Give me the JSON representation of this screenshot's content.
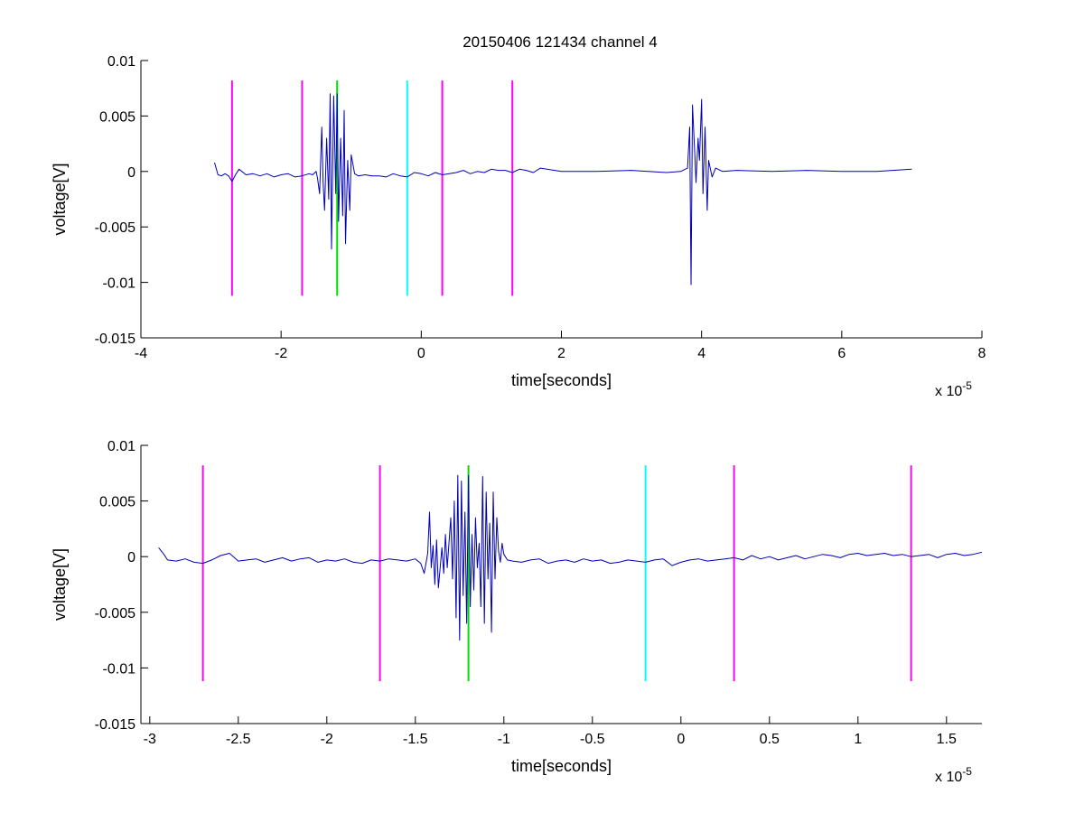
{
  "title": "20150406 121434 channel 4",
  "colors": {
    "signal": "#0000b4",
    "magenta_marker": "#ff00ff",
    "green_marker": "#00e000",
    "cyan_marker": "#00ffff",
    "axes": "#000000"
  },
  "chart_data": [
    {
      "type": "line",
      "title": "20150406 121434 channel 4",
      "xlabel": "time[seconds]",
      "ylabel": "voltage[V]",
      "x_multiplier_label": "x 10",
      "x_multiplier_exponent": "-5",
      "x_unit_scale": 1e-05,
      "xlim": [
        -4,
        8
      ],
      "ylim": [
        -0.015,
        0.01
      ],
      "xticks": [
        -4,
        -2,
        0,
        2,
        4,
        6,
        8
      ],
      "xtick_labels": [
        "-4",
        "-2",
        "0",
        "2",
        "4",
        "6",
        "8"
      ],
      "yticks": [
        -0.015,
        -0.01,
        -0.005,
        0,
        0.005,
        0.01
      ],
      "ytick_labels": [
        "-0.015",
        "-0.01",
        "-0.005",
        "0",
        "0.005",
        "0.01"
      ],
      "grid": false,
      "markers": [
        {
          "x": -2.7,
          "color": "magenta",
          "y_range": [
            -0.0112,
            0.0082
          ]
        },
        {
          "x": -1.7,
          "color": "magenta",
          "y_range": [
            -0.0112,
            0.0082
          ]
        },
        {
          "x": -1.2,
          "color": "green",
          "y_range": [
            -0.0112,
            0.0082
          ]
        },
        {
          "x": -0.2,
          "color": "cyan",
          "y_range": [
            -0.0112,
            0.0082
          ]
        },
        {
          "x": 0.3,
          "color": "magenta",
          "y_range": [
            -0.0112,
            0.0082
          ]
        },
        {
          "x": 1.3,
          "color": "magenta",
          "y_range": [
            -0.0112,
            0.0082
          ]
        }
      ],
      "series": [
        {
          "x": [
            -2.95,
            -2.9,
            -2.85,
            -2.8,
            -2.75,
            -2.7,
            -2.65,
            -2.6,
            -2.5,
            -2.4,
            -2.3,
            -2.2,
            -2.1,
            -2.0,
            -1.9,
            -1.8,
            -1.7,
            -1.6,
            -1.55,
            -1.5,
            -1.48,
            -1.45,
            -1.42,
            -1.4,
            -1.38,
            -1.35,
            -1.32,
            -1.3,
            -1.28,
            -1.25,
            -1.22,
            -1.2,
            -1.18,
            -1.15,
            -1.12,
            -1.1,
            -1.08,
            -1.05,
            -1.02,
            -1.0,
            -0.95,
            -0.9,
            -0.8,
            -0.7,
            -0.6,
            -0.5,
            -0.4,
            -0.3,
            -0.2,
            -0.1,
            0.0,
            0.1,
            0.2,
            0.3,
            0.4,
            0.5,
            0.6,
            0.7,
            0.8,
            0.9,
            1.0,
            1.1,
            1.2,
            1.3,
            1.4,
            1.5,
            1.6,
            1.7,
            2.0,
            2.5,
            3.0,
            3.5,
            3.7,
            3.8,
            3.83,
            3.85,
            3.87,
            3.9,
            3.92,
            3.95,
            3.97,
            4.0,
            4.02,
            4.05,
            4.08,
            4.1,
            4.15,
            4.2,
            4.3,
            4.5,
            5.0,
            5.5,
            6.0,
            6.5,
            7.0
          ],
          "y": [
            0.0008,
            -0.0003,
            -0.0004,
            -0.0002,
            -0.0004,
            -0.0009,
            -0.0003,
            0.0002,
            -0.0003,
            -0.0002,
            -0.0004,
            -0.0002,
            -0.0005,
            -0.0003,
            -0.0002,
            -0.0005,
            -0.0004,
            -0.0002,
            -0.0003,
            0.0,
            -0.0006,
            -0.002,
            0.004,
            -0.001,
            -0.0035,
            0.003,
            -0.0025,
            0.007,
            -0.007,
            0.0068,
            -0.002,
            0.007,
            -0.0045,
            0.003,
            -0.004,
            0.0055,
            -0.0065,
            0.001,
            -0.0035,
            0.0015,
            -0.0002,
            -0.0004,
            -0.0003,
            -0.0004,
            -0.0004,
            -0.0005,
            -0.0002,
            -0.0004,
            -0.0005,
            -0.0001,
            -0.0002,
            -0.0004,
            -0.0001,
            -0.0003,
            -0.0002,
            -0.0001,
            0.0001,
            -0.0002,
            0.0,
            -0.0001,
            0.0002,
            0.0001,
            0.0001,
            -0.0001,
            0.0002,
            0.0001,
            -0.0001,
            0.0003,
            0.0,
            0.0,
            0.0001,
            -0.0001,
            0.0,
            0.0003,
            0.004,
            -0.0102,
            0.006,
            0.002,
            -0.001,
            0.003,
            0.001,
            0.0065,
            -0.002,
            0.004,
            -0.0035,
            0.001,
            -0.0005,
            0.0003,
            0.0,
            0.0001,
            0.0,
            0.0001,
            0.0,
            0.0,
            0.0002
          ]
        }
      ]
    },
    {
      "type": "line",
      "xlabel": "time[seconds]",
      "ylabel": "voltage[V]",
      "x_multiplier_label": "x 10",
      "x_multiplier_exponent": "-5",
      "x_unit_scale": 1e-05,
      "xlim": [
        -3.05,
        1.7
      ],
      "ylim": [
        -0.015,
        0.01
      ],
      "xticks": [
        -3,
        -2.5,
        -2,
        -1.5,
        -1,
        -0.5,
        0,
        0.5,
        1,
        1.5
      ],
      "xtick_labels": [
        "-3",
        "-2.5",
        "-2",
        "-1.5",
        "-1",
        "-0.5",
        "0",
        "0.5",
        "1",
        "1.5"
      ],
      "yticks": [
        -0.015,
        -0.01,
        -0.005,
        0,
        0.005,
        0.01
      ],
      "ytick_labels": [
        "-0.015",
        "-0.01",
        "-0.005",
        "0",
        "0.005",
        "0.01"
      ],
      "grid": false,
      "markers": [
        {
          "x": -2.7,
          "color": "magenta",
          "y_range": [
            -0.0112,
            0.0082
          ]
        },
        {
          "x": -1.7,
          "color": "magenta",
          "y_range": [
            -0.0112,
            0.0082
          ]
        },
        {
          "x": -1.2,
          "color": "green",
          "y_range": [
            -0.0112,
            0.0082
          ]
        },
        {
          "x": -0.2,
          "color": "cyan",
          "y_range": [
            -0.0112,
            0.0082
          ]
        },
        {
          "x": 0.3,
          "color": "magenta",
          "y_range": [
            -0.0112,
            0.0082
          ]
        },
        {
          "x": 1.3,
          "color": "magenta",
          "y_range": [
            -0.0112,
            0.0082
          ]
        }
      ],
      "series": [
        {
          "x": [
            -2.95,
            -2.92,
            -2.9,
            -2.85,
            -2.8,
            -2.75,
            -2.7,
            -2.65,
            -2.6,
            -2.55,
            -2.5,
            -2.45,
            -2.4,
            -2.35,
            -2.3,
            -2.25,
            -2.2,
            -2.15,
            -2.1,
            -2.05,
            -2.0,
            -1.95,
            -1.9,
            -1.85,
            -1.8,
            -1.75,
            -1.7,
            -1.65,
            -1.6,
            -1.55,
            -1.5,
            -1.47,
            -1.45,
            -1.43,
            -1.42,
            -1.41,
            -1.4,
            -1.39,
            -1.38,
            -1.37,
            -1.35,
            -1.34,
            -1.33,
            -1.32,
            -1.3,
            -1.29,
            -1.28,
            -1.27,
            -1.26,
            -1.25,
            -1.24,
            -1.23,
            -1.22,
            -1.21,
            -1.2,
            -1.19,
            -1.18,
            -1.17,
            -1.16,
            -1.15,
            -1.14,
            -1.13,
            -1.12,
            -1.11,
            -1.1,
            -1.09,
            -1.08,
            -1.07,
            -1.06,
            -1.05,
            -1.04,
            -1.03,
            -1.02,
            -1.01,
            -1.0,
            -0.98,
            -0.95,
            -0.9,
            -0.85,
            -0.8,
            -0.75,
            -0.7,
            -0.65,
            -0.6,
            -0.55,
            -0.5,
            -0.45,
            -0.4,
            -0.35,
            -0.3,
            -0.25,
            -0.2,
            -0.15,
            -0.1,
            -0.05,
            0.0,
            0.05,
            0.1,
            0.15,
            0.2,
            0.25,
            0.3,
            0.35,
            0.4,
            0.45,
            0.5,
            0.55,
            0.6,
            0.65,
            0.7,
            0.75,
            0.8,
            0.85,
            0.9,
            0.95,
            1.0,
            1.05,
            1.1,
            1.15,
            1.2,
            1.25,
            1.3,
            1.35,
            1.4,
            1.45,
            1.5,
            1.55,
            1.6,
            1.65,
            1.7
          ],
          "y": [
            0.0008,
            0.0002,
            -0.0003,
            -0.0004,
            -0.0002,
            -0.0005,
            -0.0006,
            -0.0003,
            0.0001,
            0.0003,
            -0.0004,
            -0.0003,
            -0.0002,
            -0.0005,
            -0.0003,
            -0.0001,
            -0.0004,
            -0.0002,
            -0.0001,
            -0.0005,
            -0.0003,
            -0.0004,
            -0.0002,
            -0.0005,
            -0.0006,
            -0.0003,
            -0.0004,
            -0.0002,
            -0.0003,
            -0.0004,
            -0.0002,
            -0.0006,
            -0.0015,
            0.0003,
            0.004,
            -0.001,
            0.001,
            -0.0025,
            0.0015,
            -0.0028,
            0.0008,
            -0.0015,
            0.002,
            -0.001,
            0.0035,
            -0.002,
            0.005,
            -0.0055,
            0.0073,
            -0.0075,
            0.0068,
            -0.0035,
            0.004,
            -0.006,
            0.0073,
            -0.0045,
            0.002,
            -0.003,
            0.0035,
            -0.001,
            0.0012,
            -0.0045,
            0.0072,
            -0.006,
            0.0058,
            -0.002,
            0.003,
            -0.0068,
            0.0058,
            -0.002,
            0.0035,
            0.0005,
            -0.0005,
            0.0012,
            0.0002,
            -0.0003,
            -0.0004,
            -0.0005,
            -0.0003,
            -0.0002,
            -0.0006,
            -0.0004,
            -0.0003,
            -0.0005,
            -0.0002,
            -0.0004,
            -0.0003,
            -0.0006,
            -0.0005,
            -0.0003,
            -0.0004,
            -0.0005,
            -0.0003,
            -0.0002,
            -0.0008,
            -0.0005,
            -0.0003,
            -0.0002,
            -0.0004,
            -0.0003,
            -0.0002,
            -0.0001,
            -0.0003,
            0.0001,
            -0.0002,
            0.0,
            -0.0003,
            -0.0001,
            0.0001,
            -0.0002,
            0.0,
            0.0002,
            0.0001,
            -0.0001,
            0.0002,
            0.0003,
            0.0001,
            0.0002,
            0.0003,
            0.0001,
            0.0002,
            0.0,
            0.0001,
            0.0002,
            -0.0001,
            0.0002,
            0.0003,
            0.0001,
            0.0002,
            0.0004
          ]
        }
      ]
    }
  ]
}
